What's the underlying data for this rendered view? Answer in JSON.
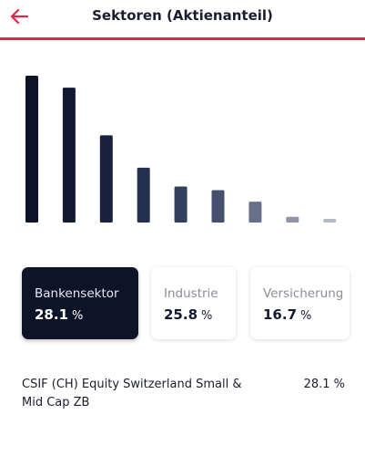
{
  "header": {
    "title": "Sektoren (Aktienanteil)",
    "back_icon": "arrow-left-icon",
    "accent_color": "#e8234a"
  },
  "chart_data": {
    "type": "bar",
    "values": [
      28.1,
      25.8,
      16.7,
      10.5,
      6.9,
      6.2,
      4.0,
      1.1,
      0.7
    ],
    "colors": [
      "#0e1428",
      "#121a33",
      "#19213e",
      "#24304f",
      "#333f5e",
      "#44506e",
      "#66708a",
      "#8e95a8",
      "#b4b9c6"
    ],
    "ylim": [
      0,
      28.1
    ]
  },
  "cards": [
    {
      "label": "Bankensektor",
      "value": "28.1",
      "unit": "%",
      "selected": true
    },
    {
      "label": "Industrie",
      "value": "25.8",
      "unit": "%",
      "selected": false
    },
    {
      "label": "Versicherung",
      "value": "16.7",
      "unit": "%",
      "selected": false
    }
  ],
  "holding": {
    "name": "CSIF (CH) Equity Switzerland Small & Mid Cap ZB",
    "value": "28.1 %"
  }
}
